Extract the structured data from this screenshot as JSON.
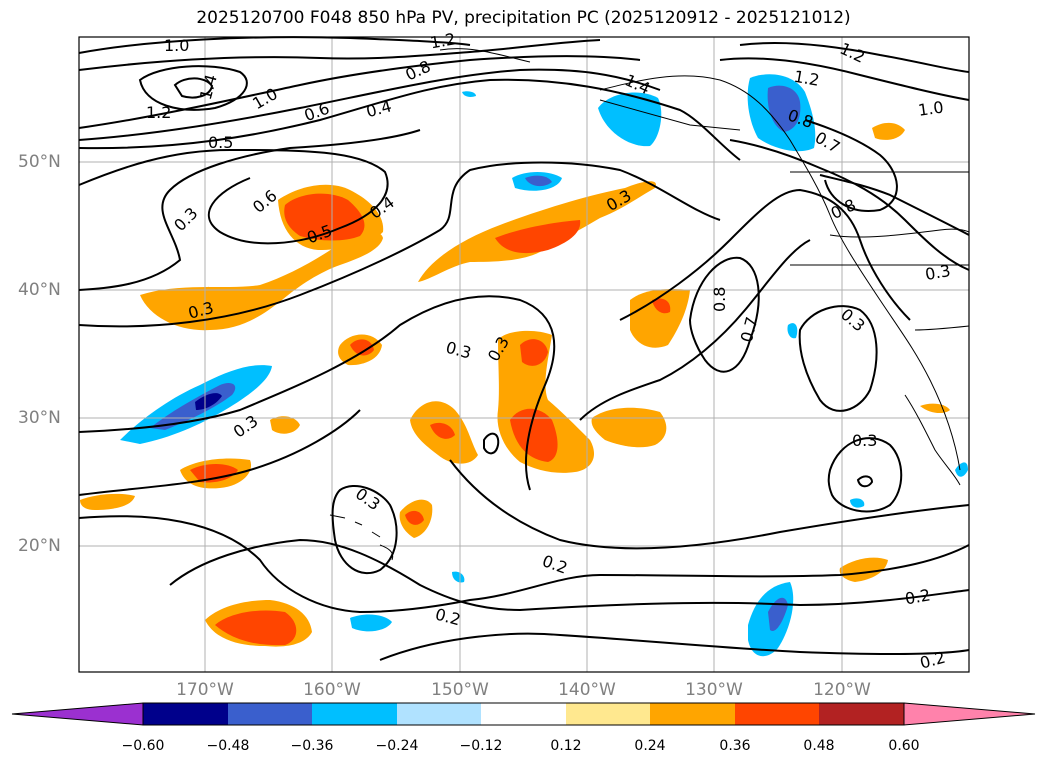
{
  "title": "2025120700 F048 850 hPa PV, precipitation PC (2025120912 - 2025121012)",
  "lat_labels": [
    "50°N",
    "40°N",
    "30°N",
    "20°N"
  ],
  "lon_labels": [
    "170°W",
    "160°W",
    "150°W",
    "140°W",
    "130°W",
    "120°W"
  ],
  "contour_labels": [
    "1.0",
    "1.2",
    "1.4",
    "1.0",
    "0.6",
    "0.4",
    "0.5",
    "0.6",
    "0.3",
    "0.5",
    "0.4",
    "0.3",
    "0.3",
    "0.3",
    "0.3",
    "0.3",
    "0.3",
    "0.2",
    "0.2",
    "0.2",
    "0.2",
    "0.8",
    "0.7",
    "0.8",
    "0.7",
    "0.8",
    "1.2",
    "1.0",
    "1.2",
    "1.4",
    "0.3",
    "0.3",
    "0.3",
    "1.2",
    "0.8"
  ],
  "colorbar": {
    "ticks": [
      "−0.60",
      "−0.48",
      "−0.36",
      "−0.24",
      "−0.12",
      "0.12",
      "0.24",
      "0.36",
      "0.48",
      "0.60"
    ],
    "colors": [
      "#9b30d0",
      "#00008b",
      "#3a5fcd",
      "#00bfff",
      "#b0e2ff",
      "#ffffff",
      "#ffe88f",
      "#ffa500",
      "#ff4500",
      "#b22222",
      "#ff82ab"
    ]
  },
  "map_colors": {
    "grid": "#b0b0b0",
    "contour": "#000000",
    "orange": "#ffa500",
    "red": "#ff4500",
    "cyan": "#00bfff",
    "blue": "#3a5fcd",
    "navy": "#00008b"
  }
}
